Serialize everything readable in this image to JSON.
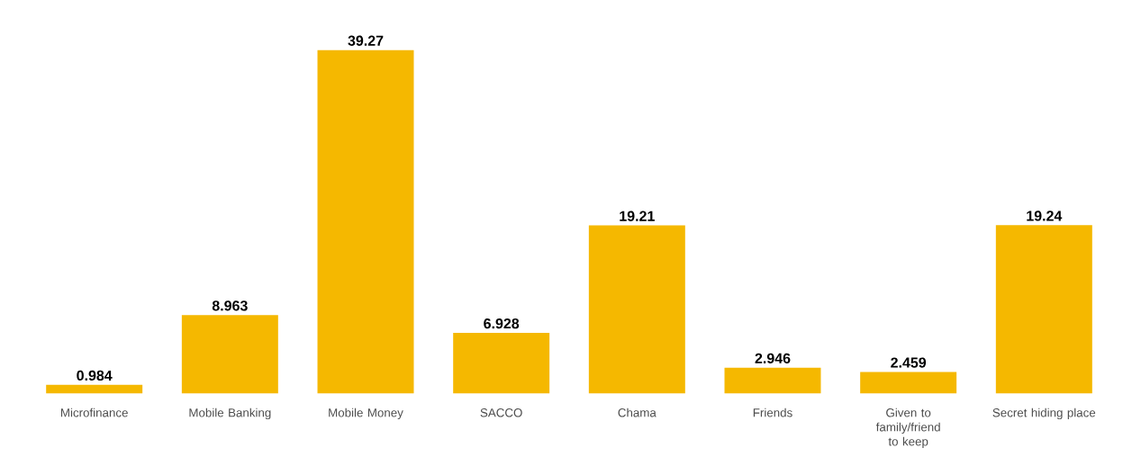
{
  "chart_data": {
    "type": "bar",
    "categories": [
      "Microfinance",
      "Mobile Banking",
      "Mobile Money",
      "SACCO",
      "Chama",
      "Friends",
      "Given to family/friend to keep",
      "Secret hiding place"
    ],
    "values": [
      0.984,
      8.963,
      39.27,
      6.928,
      19.21,
      2.946,
      2.459,
      19.24
    ],
    "color": "#f5b800",
    "data_labels": true
  }
}
